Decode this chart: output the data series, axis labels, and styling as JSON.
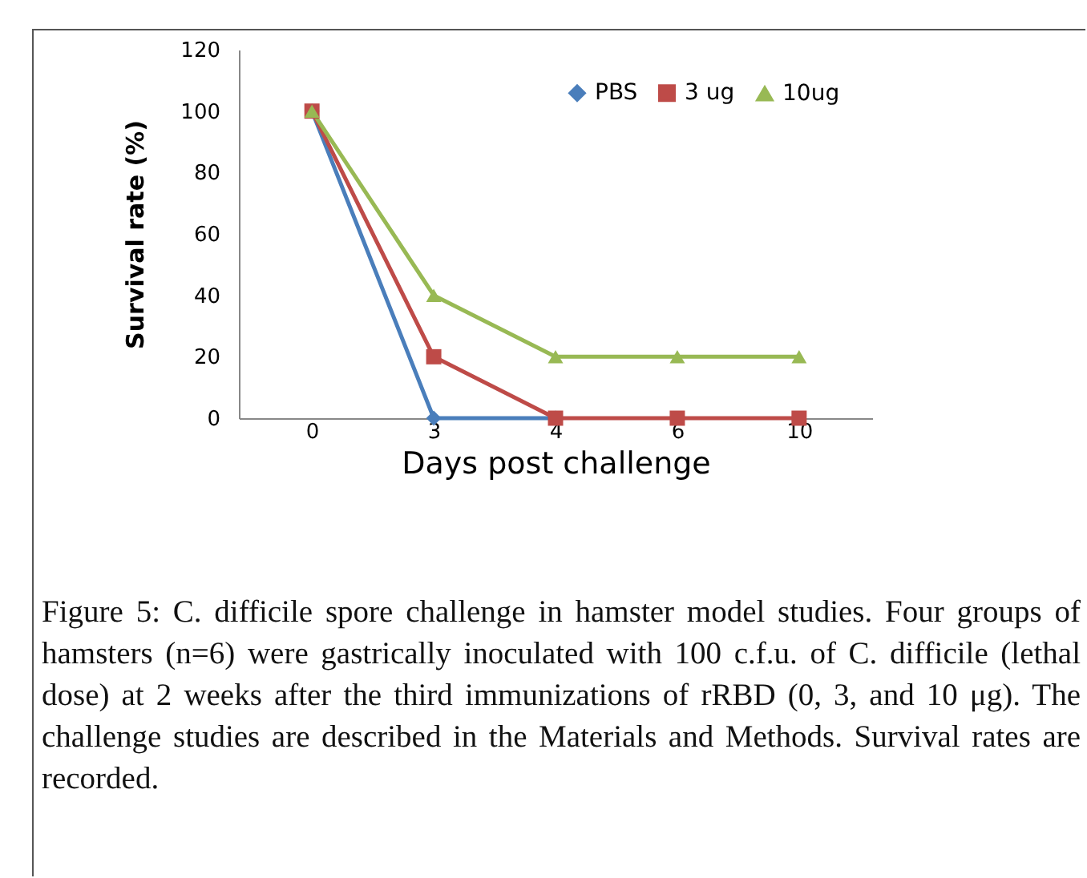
{
  "chart_data": {
    "type": "line",
    "categories": [
      "0",
      "3",
      "4",
      "6",
      "10"
    ],
    "series": [
      {
        "name": "PBS",
        "color": "#4a7ebb",
        "marker": "diamond",
        "values": [
          100,
          0,
          0,
          null,
          null
        ]
      },
      {
        "name": "3 ug",
        "color": "#be4b48",
        "marker": "square",
        "values": [
          100,
          20,
          0,
          0,
          0
        ]
      },
      {
        "name": "10ug",
        "color": "#98b954",
        "marker": "triangle",
        "values": [
          100,
          40,
          20,
          20,
          20
        ]
      }
    ],
    "xlabel": "Days post challenge",
    "ylabel": "Survival rate (%)",
    "ylim": [
      0,
      120
    ],
    "yticks": [
      0,
      20,
      40,
      60,
      80,
      100,
      120
    ],
    "grid": false,
    "legend": "top right",
    "annotations": [
      "Figure 5: C. difficile spore challenge in hamster model studies. Four groups of hamsters (n=6) were gastrically inoculated with 100 c.f.u. of C. difficile (lethal dose) at 2 weeks after the third immunizations of rRBD (0, 3, and 10 μg). The challenge studies are described in the Materials and Methods. Survival rates are recorded."
    ]
  }
}
